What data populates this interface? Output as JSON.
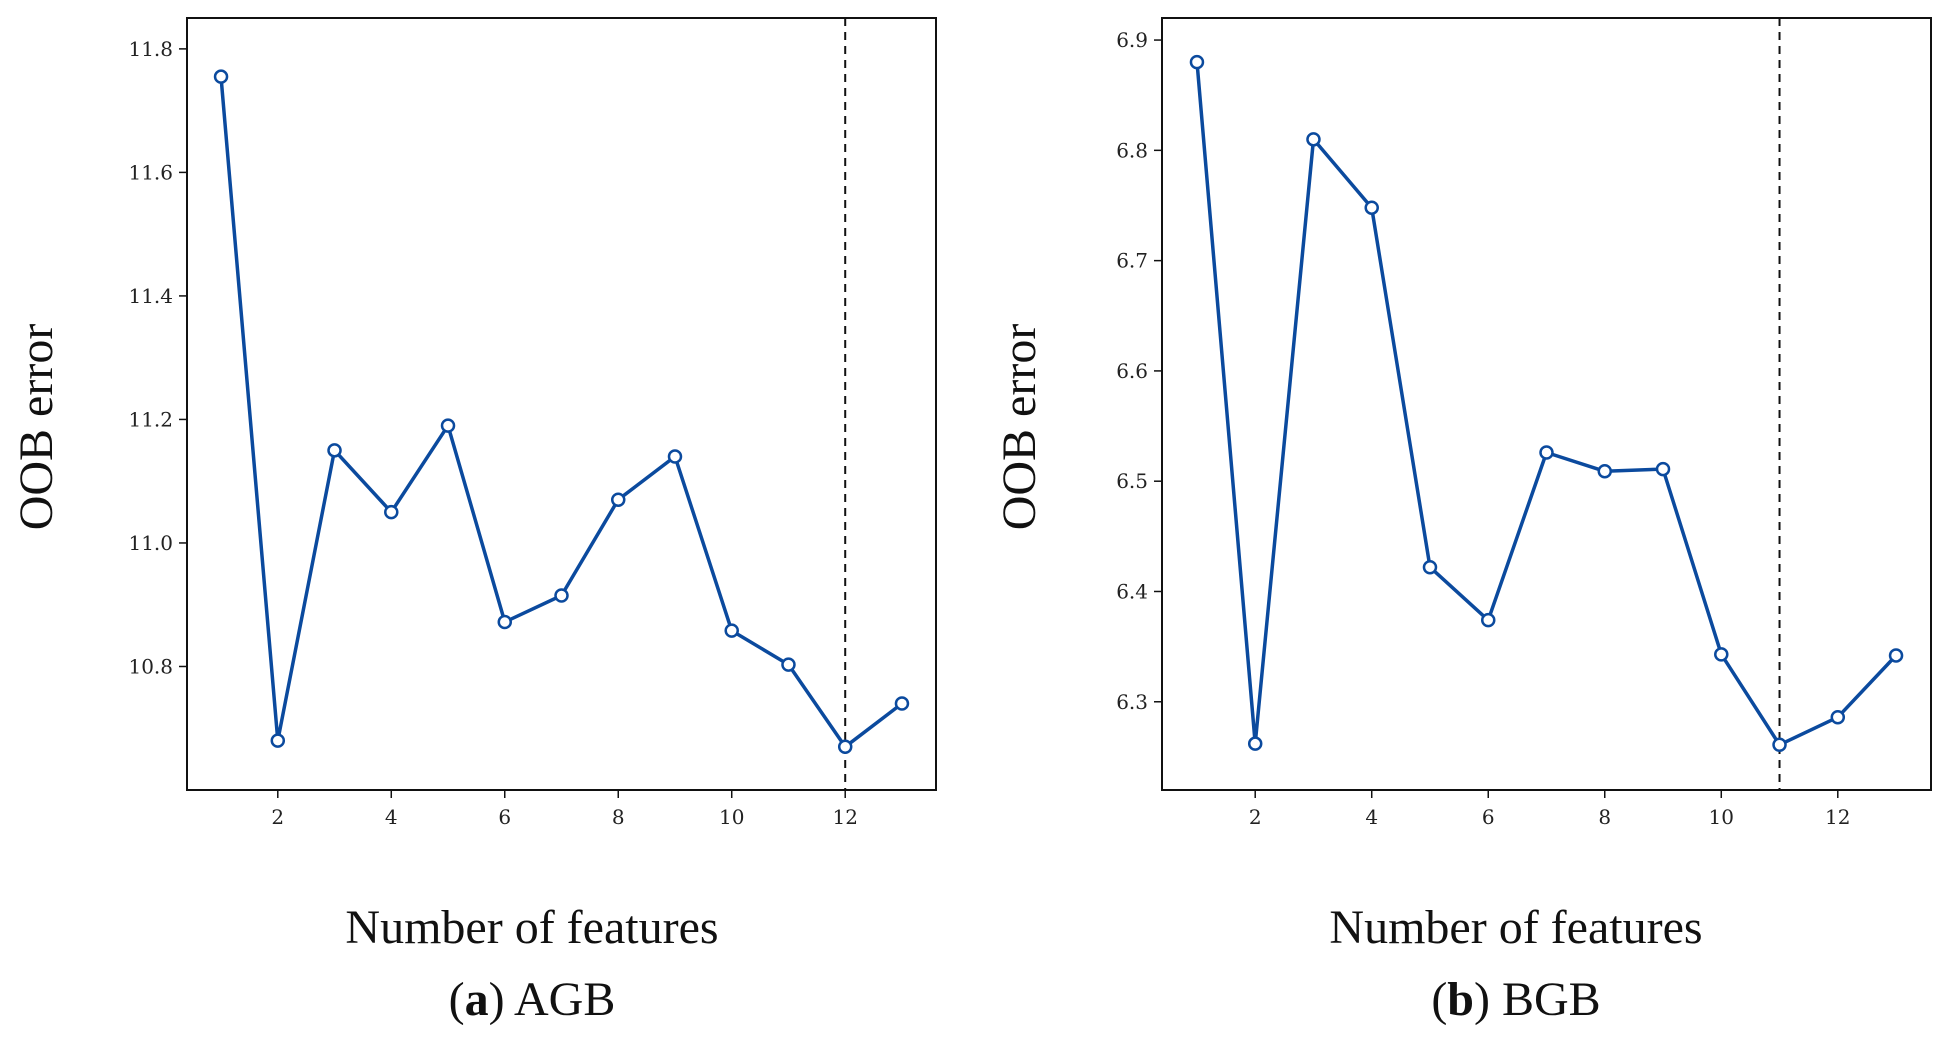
{
  "chart_data": [
    {
      "type": "line",
      "panel": "a",
      "caption_label": "a",
      "caption_text": "AGB",
      "xlabel": "Number of features",
      "ylabel": "OOB error",
      "xlim": [
        0.4,
        13.6
      ],
      "ylim": [
        10.6,
        11.85
      ],
      "xticks": [
        2,
        4,
        6,
        8,
        10,
        12
      ],
      "yticks": [
        10.8,
        11.0,
        11.2,
        11.4,
        11.6,
        11.8
      ],
      "ytick_labels": [
        "10.8",
        "11.0",
        "11.2",
        "11.4",
        "11.6",
        "11.8"
      ],
      "vline_x": 12,
      "line_color": "#0b4a9e",
      "series": [
        {
          "x": [
            1,
            2,
            3,
            4,
            5,
            6,
            7,
            8,
            9,
            10,
            11,
            12,
            13
          ],
          "values": [
            11.755,
            10.68,
            11.15,
            11.05,
            11.19,
            10.872,
            10.915,
            11.07,
            11.14,
            10.858,
            10.803,
            10.67,
            10.74
          ]
        }
      ]
    },
    {
      "type": "line",
      "panel": "b",
      "caption_label": "b",
      "caption_text": "BGB",
      "xlabel": "Number of features",
      "ylabel": "OOB error",
      "xlim": [
        0.4,
        13.6
      ],
      "ylim": [
        6.22,
        6.92
      ],
      "xticks": [
        2,
        4,
        6,
        8,
        10,
        12
      ],
      "yticks": [
        6.3,
        6.4,
        6.5,
        6.6,
        6.7,
        6.8,
        6.9
      ],
      "ytick_labels": [
        "6.3",
        "6.4",
        "6.5",
        "6.6",
        "6.7",
        "6.8",
        "6.9"
      ],
      "vline_x": 11,
      "line_color": "#0b4a9e",
      "series": [
        {
          "x": [
            1,
            2,
            3,
            4,
            5,
            6,
            7,
            8,
            9,
            10,
            11,
            12,
            13
          ],
          "values": [
            6.88,
            6.262,
            6.81,
            6.748,
            6.422,
            6.374,
            6.526,
            6.509,
            6.511,
            6.343,
            6.261,
            6.286,
            6.342
          ]
        }
      ]
    }
  ]
}
